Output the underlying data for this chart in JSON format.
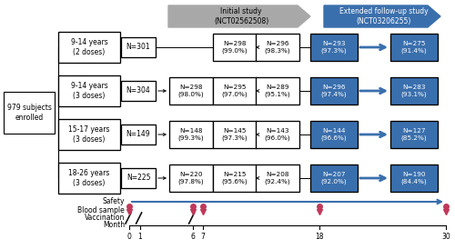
{
  "fig_width": 5.0,
  "fig_height": 2.74,
  "dpi": 100,
  "background": "#ffffff",
  "header_initial_text": "Initial study\n(NCT02562508)",
  "header_extended_text": "Extended follow-up study\n(NCT03206255)",
  "enrolled_text": "979 subjects\nenrolled",
  "groups": [
    {
      "label": "9-14 years\n(2 doses)",
      "n0": "N=301",
      "doses": [
        {
          "val": "N=298",
          "pct": "(99.0%)"
        },
        {
          "val": "N=296",
          "pct": "(98.3%)"
        }
      ],
      "ext": [
        {
          "val": "N=293",
          "pct": "(97.3%)"
        },
        {
          "val": "N=275",
          "pct": "(91.4%)"
        }
      ],
      "two_dose": true
    },
    {
      "label": "9-14 years\n(3 doses)",
      "n0": "N=304",
      "doses": [
        {
          "val": "N=298",
          "pct": "(98.0%)"
        },
        {
          "val": "N=295",
          "pct": "(97.0%)"
        },
        {
          "val": "N=289",
          "pct": "(95.1%)"
        }
      ],
      "ext": [
        {
          "val": "N=296",
          "pct": "(97.4%)"
        },
        {
          "val": "N=283",
          "pct": "(93.1%)"
        }
      ],
      "two_dose": false
    },
    {
      "label": "15-17 years\n(3 doses)",
      "n0": "N=149",
      "doses": [
        {
          "val": "N=148",
          "pct": "(99.3%)"
        },
        {
          "val": "N=145",
          "pct": "(97.3%)"
        },
        {
          "val": "N=143",
          "pct": "(96.0%)"
        }
      ],
      "ext": [
        {
          "val": "N=144",
          "pct": "(96.6%)"
        },
        {
          "val": "N=127",
          "pct": "(85.2%)"
        }
      ],
      "two_dose": false
    },
    {
      "label": "18-26 years\n(3 doses)",
      "n0": "N=225",
      "doses": [
        {
          "val": "N=220",
          "pct": "(97.8%)"
        },
        {
          "val": "N=215",
          "pct": "(95.6%)"
        },
        {
          "val": "N=208",
          "pct": "(92.4%)"
        }
      ],
      "ext": [
        {
          "val": "N=207",
          "pct": "(92.0%)"
        },
        {
          "val": "N=190",
          "pct": "(84.4%)"
        }
      ],
      "two_dose": false
    }
  ],
  "box_color_white": "#ffffff",
  "box_edge_color": "#000000",
  "box_color_blue": "#3a6fad",
  "text_color_white": "#ffffff",
  "text_color_black": "#000000",
  "arrow_color_blue": "#3a6fad",
  "header_gray_color": "#a8a8a8",
  "header_blue_color": "#3a6fad",
  "safety_line_color": "#3a6fad",
  "blood_color": "#c0395a",
  "vaccination_color": "#111111",
  "blood_months": [
    0,
    6,
    7,
    18,
    30
  ],
  "vaccination_months": [
    0,
    1,
    6
  ],
  "month_ticks": [
    0,
    1,
    6,
    7,
    18,
    30
  ]
}
